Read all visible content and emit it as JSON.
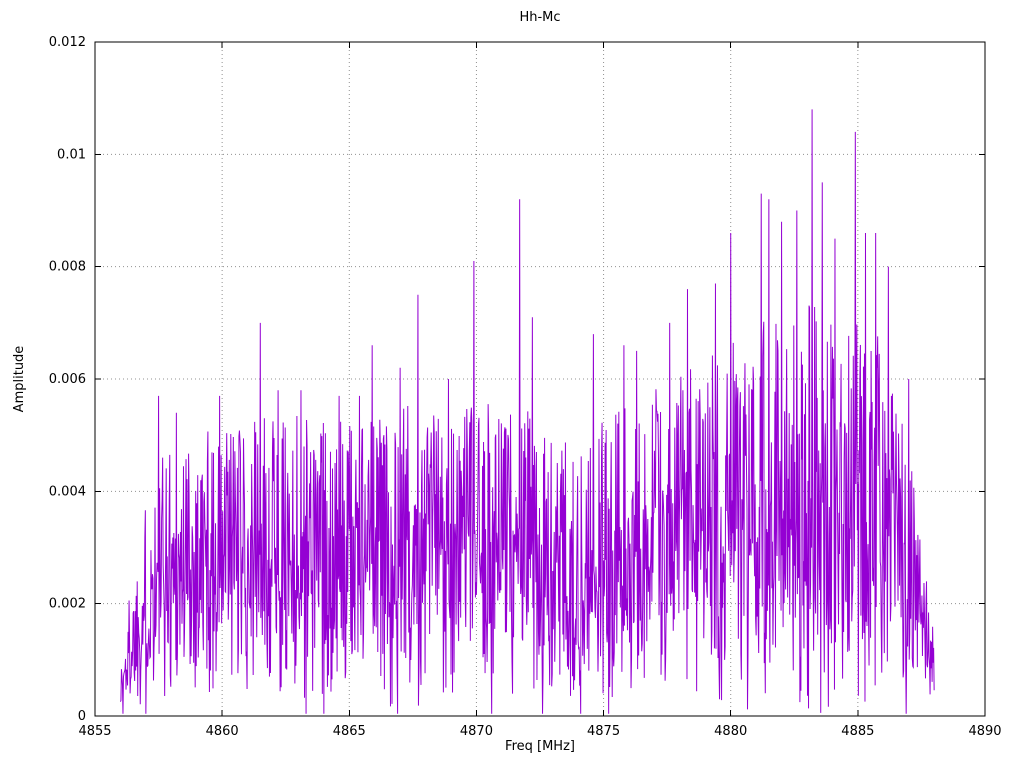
{
  "chart_data": {
    "type": "line",
    "title": "Hh-Mc",
    "xlabel": "Freq [MHz]",
    "ylabel": "Amplitude",
    "xlim": [
      4855,
      4890
    ],
    "ylim": [
      0,
      0.012
    ],
    "grid": true,
    "legend": "none",
    "line_color": "#9400d3",
    "background": "#ffffff",
    "x_ticks": {
      "values": [
        4855,
        4860,
        4865,
        4870,
        4875,
        4880,
        4885,
        4890
      ],
      "labels": [
        "4855",
        "4860",
        "4865",
        "4870",
        "4875",
        "4880",
        "4885",
        "4890"
      ]
    },
    "y_ticks": {
      "values": [
        0,
        0.002,
        0.004,
        0.006,
        0.008,
        0.01,
        0.012
      ],
      "labels": [
        "0",
        "0.002",
        "0.004",
        "0.006",
        "0.008",
        "0.01",
        "0.012"
      ]
    },
    "data_range": [
      4856.0,
      4888.0
    ],
    "envelope": [
      [
        4856.0,
        0.0005,
        0.001
      ],
      [
        4856.6,
        0.0016,
        0.0032
      ],
      [
        4857.4,
        0.0025,
        0.0052
      ],
      [
        4858.5,
        0.0027,
        0.0054
      ],
      [
        4860.0,
        0.0029,
        0.0057
      ],
      [
        4861.5,
        0.0031,
        0.006
      ],
      [
        4863.0,
        0.003,
        0.0058
      ],
      [
        4864.5,
        0.0031,
        0.0057
      ],
      [
        4866.0,
        0.0032,
        0.0058
      ],
      [
        4867.5,
        0.0031,
        0.006
      ],
      [
        4869.0,
        0.0032,
        0.0058
      ],
      [
        4870.5,
        0.0033,
        0.006
      ],
      [
        4872.0,
        0.0031,
        0.006
      ],
      [
        4873.0,
        0.0026,
        0.0052
      ],
      [
        4874.5,
        0.0028,
        0.0056
      ],
      [
        4876.0,
        0.003,
        0.006
      ],
      [
        4877.5,
        0.0033,
        0.0064
      ],
      [
        4879.0,
        0.0036,
        0.0068
      ],
      [
        4880.5,
        0.0039,
        0.0074
      ],
      [
        4882.0,
        0.0041,
        0.0078
      ],
      [
        4883.5,
        0.0042,
        0.008
      ],
      [
        4885.0,
        0.0041,
        0.0078
      ],
      [
        4886.2,
        0.0037,
        0.0072
      ],
      [
        4887.0,
        0.0027,
        0.0052
      ],
      [
        4887.7,
        0.0014,
        0.0028
      ],
      [
        4888.0,
        0.0009,
        0.0016
      ]
    ],
    "peaks": [
      [
        4857.5,
        0.0057
      ],
      [
        4858.2,
        0.0054
      ],
      [
        4859.9,
        0.0057
      ],
      [
        4861.5,
        0.007
      ],
      [
        4862.2,
        0.0058
      ],
      [
        4863.1,
        0.0058
      ],
      [
        4864.6,
        0.0057
      ],
      [
        4865.4,
        0.0057
      ],
      [
        4865.9,
        0.0066
      ],
      [
        4867.0,
        0.0062
      ],
      [
        4867.7,
        0.0075
      ],
      [
        4868.9,
        0.006
      ],
      [
        4869.9,
        0.0081
      ],
      [
        4871.7,
        0.0092
      ],
      [
        4872.2,
        0.0071
      ],
      [
        4874.6,
        0.0068
      ],
      [
        4875.8,
        0.0066
      ],
      [
        4876.3,
        0.0065
      ],
      [
        4877.6,
        0.007
      ],
      [
        4878.3,
        0.0076
      ],
      [
        4879.4,
        0.0077
      ],
      [
        4880.0,
        0.0086
      ],
      [
        4881.2,
        0.0093
      ],
      [
        4881.5,
        0.0092
      ],
      [
        4882.0,
        0.0088
      ],
      [
        4882.6,
        0.009
      ],
      [
        4883.2,
        0.0108
      ],
      [
        4883.6,
        0.0095
      ],
      [
        4884.1,
        0.0085
      ],
      [
        4884.9,
        0.0104
      ],
      [
        4885.3,
        0.0086
      ],
      [
        4885.7,
        0.0086
      ],
      [
        4886.2,
        0.008
      ],
      [
        4887.0,
        0.006
      ]
    ],
    "nulls": [
      4856.1,
      4857.0,
      4863.3,
      4864.0,
      4866.9,
      4870.6,
      4872.6,
      4874.1,
      4875.2,
      4886.9
    ],
    "noise": {
      "seed": 1337,
      "dx": 0.02
    }
  }
}
